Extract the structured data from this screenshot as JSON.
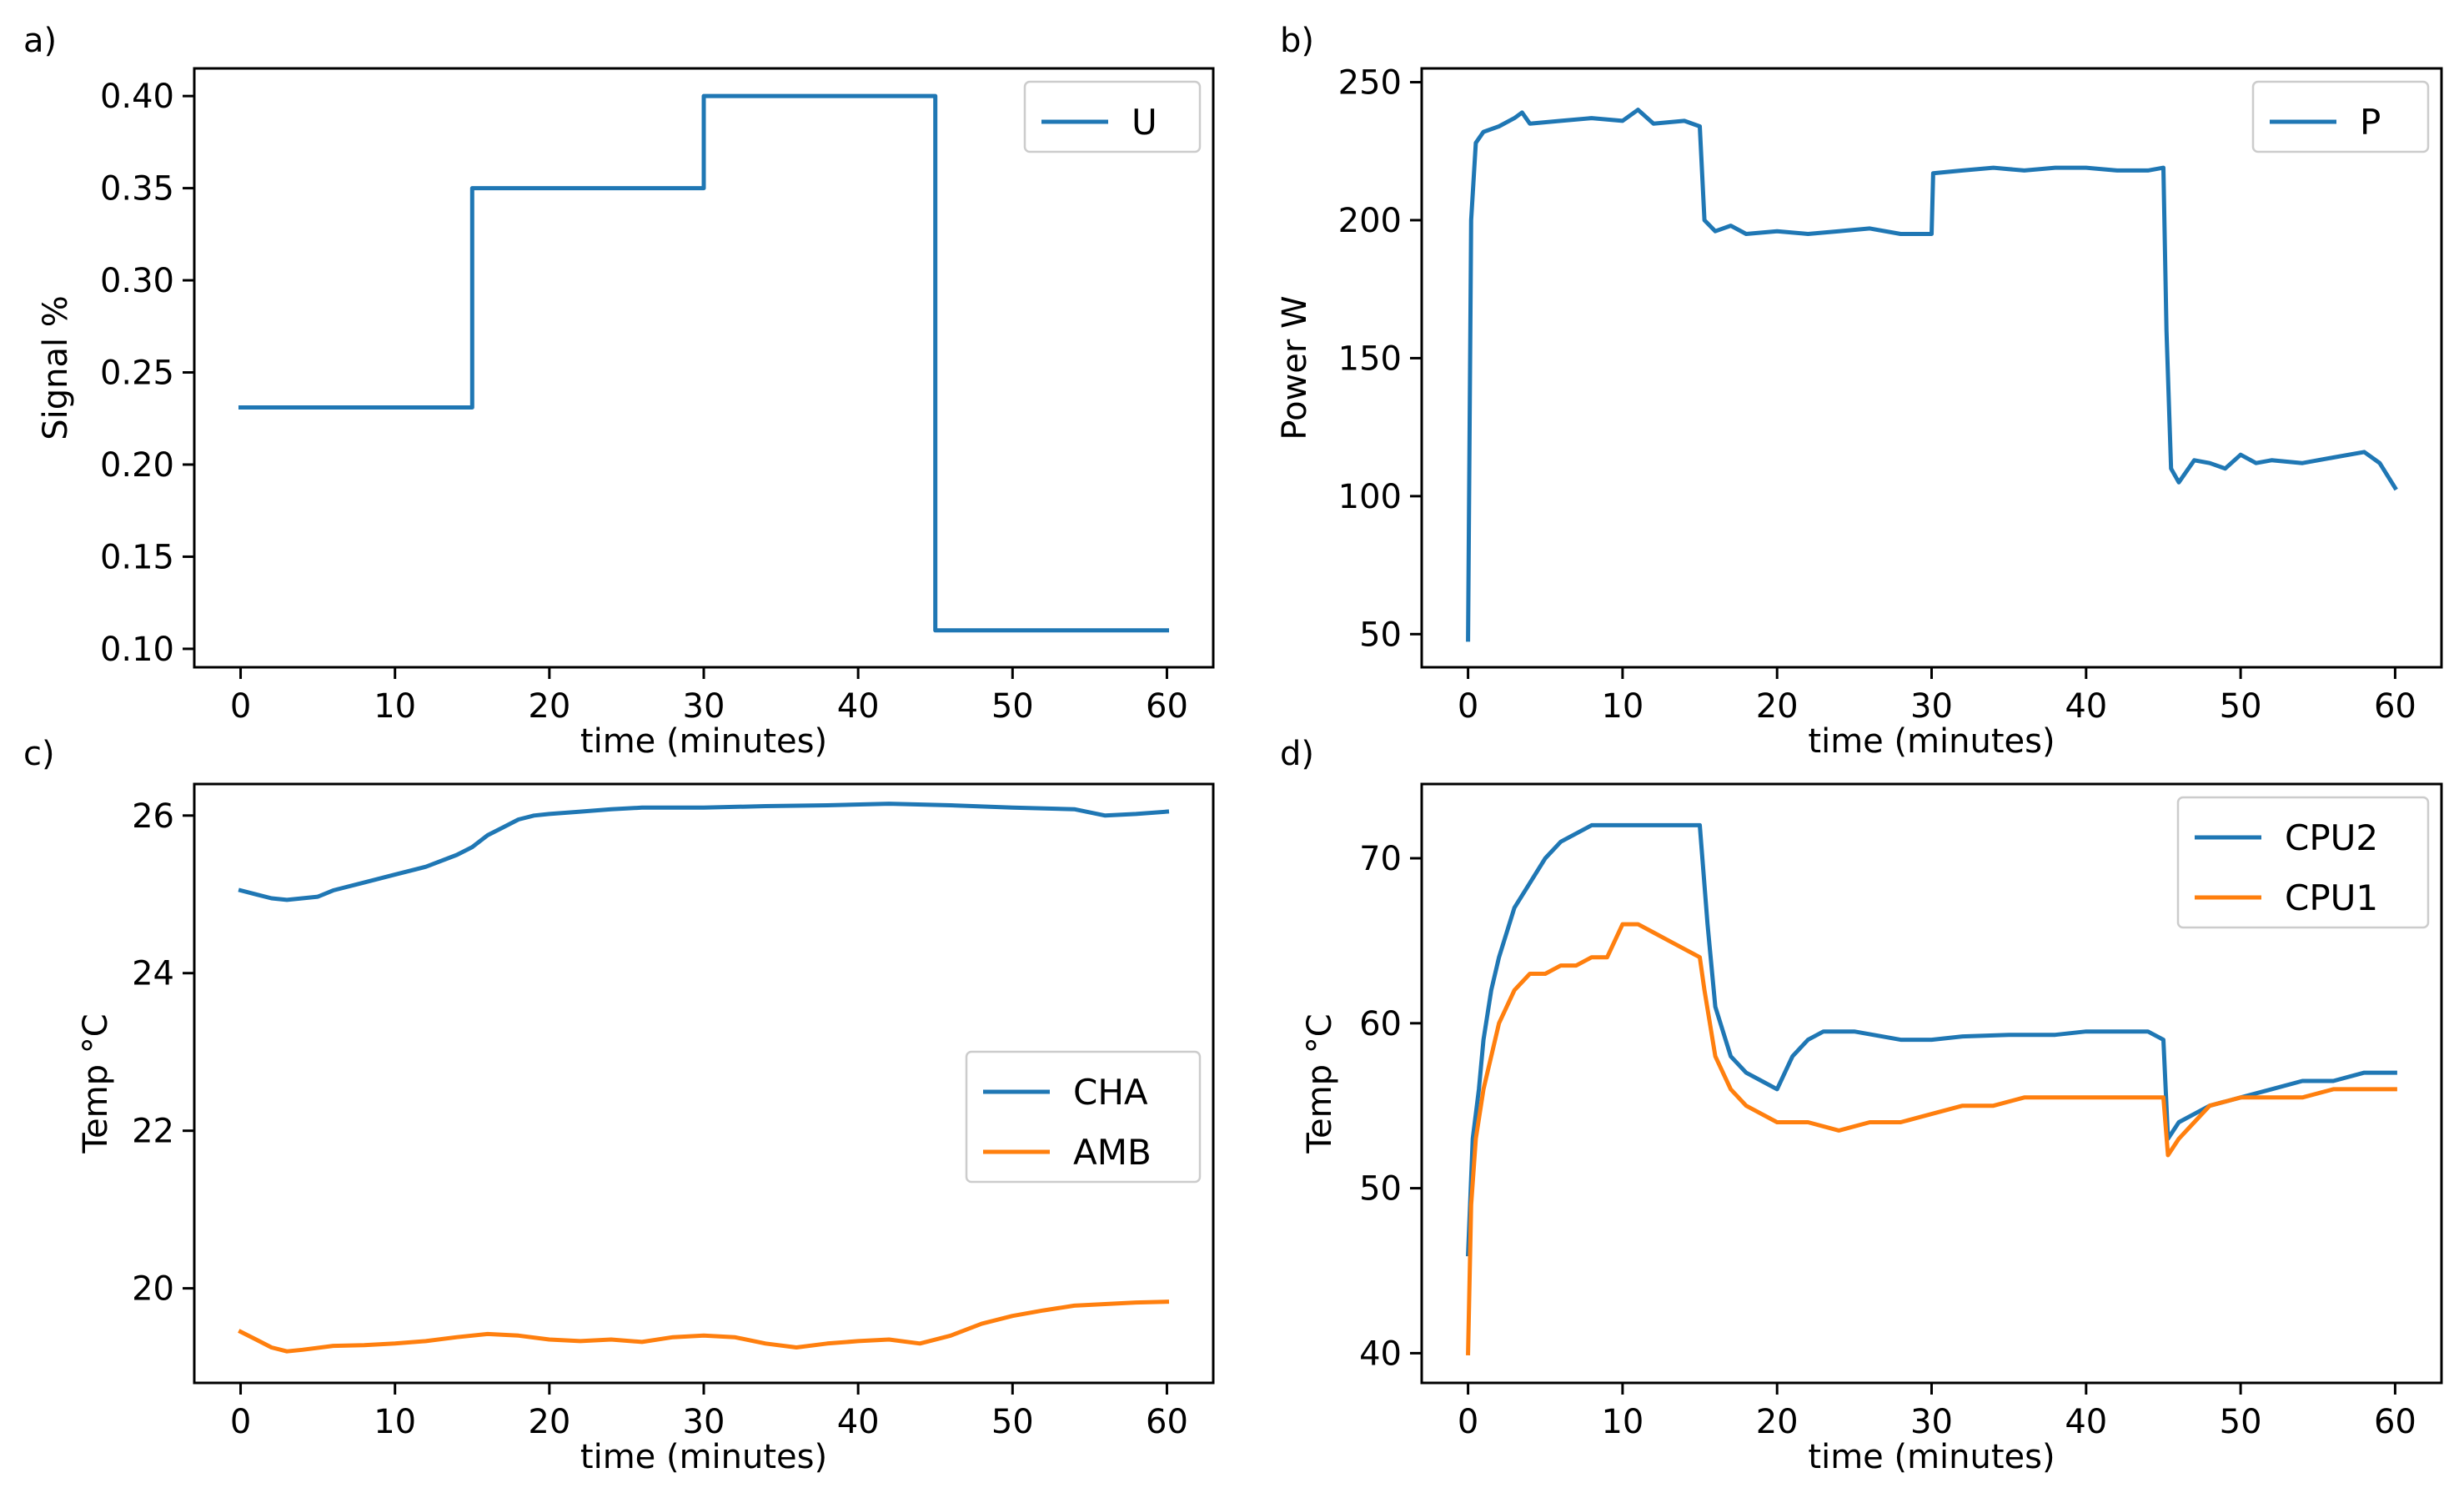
{
  "chart_data": [
    {
      "panel_label": "a)",
      "type": "line",
      "xlabel": "time (minutes)",
      "ylabel": "Signal %",
      "xlim": [
        -3,
        63
      ],
      "ylim": [
        0.09,
        0.415
      ],
      "xticks": [
        0,
        10,
        20,
        30,
        40,
        50,
        60
      ],
      "yticks": [
        0.1,
        0.15,
        0.2,
        0.25,
        0.3,
        0.35,
        0.4
      ],
      "ytick_decimals": 2,
      "legend_loc": "top-right",
      "series": [
        {
          "name": "U",
          "color": "#1f77b4",
          "x": [
            0,
            15,
            15,
            30,
            30,
            45,
            45,
            60
          ],
          "y": [
            0.231,
            0.231,
            0.35,
            0.35,
            0.4,
            0.4,
            0.11,
            0.11
          ]
        }
      ]
    },
    {
      "panel_label": "b)",
      "type": "line",
      "xlabel": "time (minutes)",
      "ylabel": "Power W",
      "xlim": [
        -3,
        63
      ],
      "ylim": [
        38,
        255
      ],
      "xticks": [
        0,
        10,
        20,
        30,
        40,
        50,
        60
      ],
      "yticks": [
        50,
        100,
        150,
        200,
        250
      ],
      "ytick_decimals": 0,
      "legend_loc": "top-right",
      "series": [
        {
          "name": "P",
          "color": "#1f77b4",
          "x": [
            0,
            0.2,
            0.5,
            1,
            2,
            3,
            3.5,
            4,
            6,
            8,
            10,
            11,
            12,
            14,
            15,
            15.3,
            16,
            17,
            18,
            20,
            22,
            24,
            26,
            28,
            30,
            30.1,
            32,
            34,
            36,
            38,
            40,
            42,
            44,
            45,
            45.2,
            45.5,
            46,
            47,
            48,
            49,
            50,
            51,
            52,
            54,
            56,
            58,
            59,
            60
          ],
          "y": [
            48,
            200,
            228,
            232,
            234,
            237,
            239,
            235,
            236,
            237,
            236,
            240,
            235,
            236,
            234,
            200,
            196,
            198,
            195,
            196,
            195,
            196,
            197,
            195,
            195,
            217,
            218,
            219,
            218,
            219,
            219,
            218,
            218,
            219,
            160,
            110,
            105,
            113,
            112,
            110,
            115,
            112,
            113,
            112,
            114,
            116,
            112,
            103
          ]
        }
      ]
    },
    {
      "panel_label": "c)",
      "type": "line",
      "xlabel": "time (minutes)",
      "ylabel": "Temp °C",
      "xlim": [
        -3,
        63
      ],
      "ylim": [
        18.8,
        26.4
      ],
      "xticks": [
        0,
        10,
        20,
        30,
        40,
        50,
        60
      ],
      "yticks": [
        20,
        22,
        24,
        26
      ],
      "ytick_decimals": 0,
      "legend_loc": "center-right",
      "series": [
        {
          "name": "CHA",
          "color": "#1f77b4",
          "x": [
            0,
            1,
            2,
            3,
            4,
            5,
            6,
            8,
            10,
            12,
            14,
            15,
            16,
            17,
            18,
            19,
            20,
            22,
            24,
            26,
            28,
            30,
            34,
            38,
            42,
            46,
            50,
            54,
            56,
            58,
            60
          ],
          "y": [
            25.05,
            25.0,
            24.95,
            24.93,
            24.95,
            24.97,
            25.05,
            25.15,
            25.25,
            25.35,
            25.5,
            25.6,
            25.75,
            25.85,
            25.95,
            26.0,
            26.02,
            26.05,
            26.08,
            26.1,
            26.1,
            26.1,
            26.12,
            26.13,
            26.15,
            26.13,
            26.1,
            26.08,
            26.0,
            26.02,
            26.05
          ]
        },
        {
          "name": "AMB",
          "color": "#ff7f0e",
          "x": [
            0,
            1,
            2,
            3,
            4,
            6,
            8,
            10,
            12,
            14,
            16,
            18,
            20,
            22,
            24,
            26,
            28,
            30,
            32,
            34,
            36,
            38,
            40,
            42,
            44,
            46,
            48,
            50,
            52,
            54,
            56,
            58,
            60
          ],
          "y": [
            19.45,
            19.35,
            19.25,
            19.2,
            19.22,
            19.27,
            19.28,
            19.3,
            19.33,
            19.38,
            19.42,
            19.4,
            19.35,
            19.33,
            19.35,
            19.32,
            19.38,
            19.4,
            19.38,
            19.3,
            19.25,
            19.3,
            19.33,
            19.35,
            19.3,
            19.4,
            19.55,
            19.65,
            19.72,
            19.78,
            19.8,
            19.82,
            19.83
          ]
        }
      ]
    },
    {
      "panel_label": "d)",
      "type": "line",
      "xlabel": "time (minutes)",
      "ylabel": "Temp °C",
      "xlim": [
        -3,
        63
      ],
      "ylim": [
        38.2,
        74.5
      ],
      "xticks": [
        0,
        10,
        20,
        30,
        40,
        50,
        60
      ],
      "yticks": [
        40,
        50,
        60,
        70
      ],
      "ytick_decimals": 0,
      "legend_loc": "top-right",
      "series": [
        {
          "name": "CPU2",
          "color": "#1f77b4",
          "x": [
            0,
            0.3,
            0.7,
            1,
            1.5,
            2,
            3,
            4,
            5,
            6,
            7,
            8,
            9,
            10,
            11,
            12,
            14,
            15,
            15.5,
            16,
            17,
            18,
            19,
            20,
            21,
            22,
            23,
            25,
            28,
            30,
            32,
            35,
            38,
            40,
            42,
            44,
            45,
            45.3,
            46,
            48,
            50,
            52,
            54,
            56,
            58,
            60
          ],
          "y": [
            46,
            53,
            56,
            59,
            62,
            64,
            67,
            68.5,
            70,
            71,
            71.5,
            72,
            72,
            72,
            72,
            72,
            72,
            72,
            66,
            61,
            58,
            57,
            56.5,
            56,
            58,
            59,
            59.5,
            59.5,
            59,
            59,
            59.2,
            59.3,
            59.3,
            59.5,
            59.5,
            59.5,
            59,
            53,
            54,
            55,
            55.5,
            56,
            56.5,
            56.5,
            57,
            57
          ]
        },
        {
          "name": "CPU1",
          "color": "#ff7f0e",
          "x": [
            0,
            0.2,
            0.5,
            1,
            1.5,
            2,
            3,
            4,
            5,
            6,
            7,
            8,
            9,
            10,
            11,
            12,
            13,
            14,
            15,
            15.3,
            16,
            17,
            18,
            20,
            22,
            24,
            26,
            28,
            30,
            32,
            34,
            36,
            38,
            40,
            42,
            44,
            45,
            45.3,
            46,
            47,
            48,
            50,
            52,
            54,
            56,
            58,
            60
          ],
          "y": [
            40,
            49,
            53,
            56,
            58,
            60,
            62,
            63,
            63,
            63.5,
            63.5,
            64,
            64,
            66,
            66,
            65.5,
            65,
            64.5,
            64,
            62,
            58,
            56,
            55,
            54,
            54,
            53.5,
            54,
            54,
            54.5,
            55,
            55,
            55.5,
            55.5,
            55.5,
            55.5,
            55.5,
            55.5,
            52,
            53,
            54,
            55,
            55.5,
            55.5,
            55.5,
            56,
            56,
            56
          ]
        }
      ]
    }
  ]
}
